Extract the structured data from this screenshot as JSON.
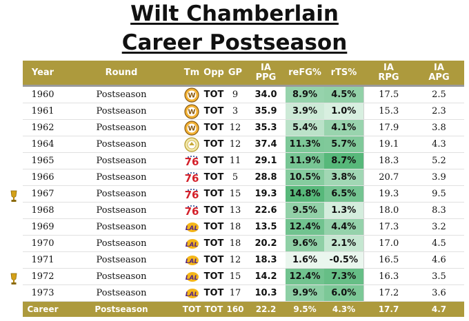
{
  "title": {
    "line1": "Wilt Chamberlain",
    "line2": "Career Postseason"
  },
  "headers": {
    "year": "Year",
    "round": "Round",
    "tm": "Tm",
    "opp": "Opp",
    "gp": "GP",
    "ppg_1": "IA",
    "ppg_2": "PPG",
    "refg": "reFG%",
    "rts": "rTS%",
    "rpg_1": "IA",
    "rpg_2": "RPG",
    "apg_1": "IA",
    "apg_2": "APG"
  },
  "rows": [
    {
      "year": "1960",
      "round": "Postseason",
      "team": "warriors-w-logo",
      "opp": "TOT",
      "gp": "9",
      "ppg": "34.0",
      "refg": "8.9%",
      "rts": "4.5%",
      "rpg": "17.5",
      "apg": "2.5",
      "champion": false,
      "refg_level": 0.57,
      "rts_level": 0.6
    },
    {
      "year": "1961",
      "round": "Postseason",
      "team": "warriors-w-logo",
      "opp": "TOT",
      "gp": "3",
      "ppg": "35.9",
      "refg": "3.9%",
      "rts": "1.0%",
      "rpg": "15.3",
      "apg": "2.3",
      "champion": false,
      "refg_level": 0.2,
      "rts_level": 0.12
    },
    {
      "year": "1962",
      "round": "Postseason",
      "team": "warriors-w-logo",
      "opp": "TOT",
      "gp": "12",
      "ppg": "35.3",
      "refg": "5.4%",
      "rts": "4.1%",
      "rpg": "17.9",
      "apg": "3.8",
      "champion": false,
      "refg_level": 0.32,
      "rts_level": 0.55
    },
    {
      "year": "1964",
      "round": "Postseason",
      "team": "sf-warriors-logo",
      "opp": "TOT",
      "gp": "12",
      "ppg": "37.4",
      "refg": "11.3%",
      "rts": "5.7%",
      "rpg": "19.1",
      "apg": "4.3",
      "champion": false,
      "refg_level": 0.74,
      "rts_level": 0.72
    },
    {
      "year": "1965",
      "round": "Postseason",
      "team": "76ers-logo",
      "opp": "TOT",
      "gp": "11",
      "ppg": "29.1",
      "refg": "11.9%",
      "rts": "8.7%",
      "rpg": "18.3",
      "apg": "5.2",
      "champion": false,
      "refg_level": 0.78,
      "rts_level": 1.0
    },
    {
      "year": "1966",
      "round": "Postseason",
      "team": "76ers-logo",
      "opp": "TOT",
      "gp": "5",
      "ppg": "28.8",
      "refg": "10.5%",
      "rts": "3.8%",
      "rpg": "20.7",
      "apg": "3.9",
      "champion": false,
      "refg_level": 0.68,
      "rts_level": 0.5
    },
    {
      "year": "1967",
      "round": "Postseason",
      "team": "76ers-logo",
      "opp": "TOT",
      "gp": "15",
      "ppg": "19.3",
      "refg": "14.8%",
      "rts": "6.5%",
      "rpg": "19.3",
      "apg": "9.5",
      "champion": true,
      "refg_level": 1.0,
      "rts_level": 0.8
    },
    {
      "year": "1968",
      "round": "Postseason",
      "team": "76ers-logo",
      "opp": "TOT",
      "gp": "13",
      "ppg": "22.6",
      "refg": "9.5%",
      "rts": "1.3%",
      "rpg": "18.0",
      "apg": "8.3",
      "champion": false,
      "refg_level": 0.6,
      "rts_level": 0.15
    },
    {
      "year": "1969",
      "round": "Postseason",
      "team": "lakers-logo",
      "opp": "TOT",
      "gp": "18",
      "ppg": "13.5",
      "refg": "12.4%",
      "rts": "4.4%",
      "rpg": "17.3",
      "apg": "3.2",
      "champion": false,
      "refg_level": 0.82,
      "rts_level": 0.58
    },
    {
      "year": "1970",
      "round": "Postseason",
      "team": "lakers-logo",
      "opp": "TOT",
      "gp": "18",
      "ppg": "20.2",
      "refg": "9.6%",
      "rts": "2.1%",
      "rpg": "17.0",
      "apg": "4.5",
      "champion": false,
      "refg_level": 0.62,
      "rts_level": 0.25
    },
    {
      "year": "1971",
      "round": "Postseason",
      "team": "lakers-logo",
      "opp": "TOT",
      "gp": "12",
      "ppg": "18.3",
      "refg": "1.6%",
      "rts": "-0.5%",
      "rpg": "16.5",
      "apg": "4.6",
      "champion": false,
      "refg_level": 0.0,
      "rts_level": 0.0
    },
    {
      "year": "1972",
      "round": "Postseason",
      "team": "lakers-logo",
      "opp": "TOT",
      "gp": "15",
      "ppg": "14.2",
      "refg": "12.4%",
      "rts": "7.3%",
      "rpg": "16.3",
      "apg": "3.5",
      "champion": true,
      "refg_level": 0.82,
      "rts_level": 0.9
    },
    {
      "year": "1973",
      "round": "Postseason",
      "team": "lakers-logo",
      "opp": "TOT",
      "gp": "17",
      "ppg": "10.3",
      "refg": "9.9%",
      "rts": "6.0%",
      "rpg": "17.2",
      "apg": "3.6",
      "champion": false,
      "refg_level": 0.63,
      "rts_level": 0.75
    }
  ],
  "career": {
    "year": "Career",
    "round": "Postseason",
    "tm": "TOT",
    "opp": "TOT",
    "gp": "160",
    "ppg": "22.2",
    "refg": "9.5%",
    "rts": "4.3%",
    "rpg": "17.7",
    "apg": "4.7"
  },
  "colors": {
    "header_bg": "#ad9a3d",
    "heat_low": "#eaf6ee",
    "heat_high": "#57b87a"
  }
}
